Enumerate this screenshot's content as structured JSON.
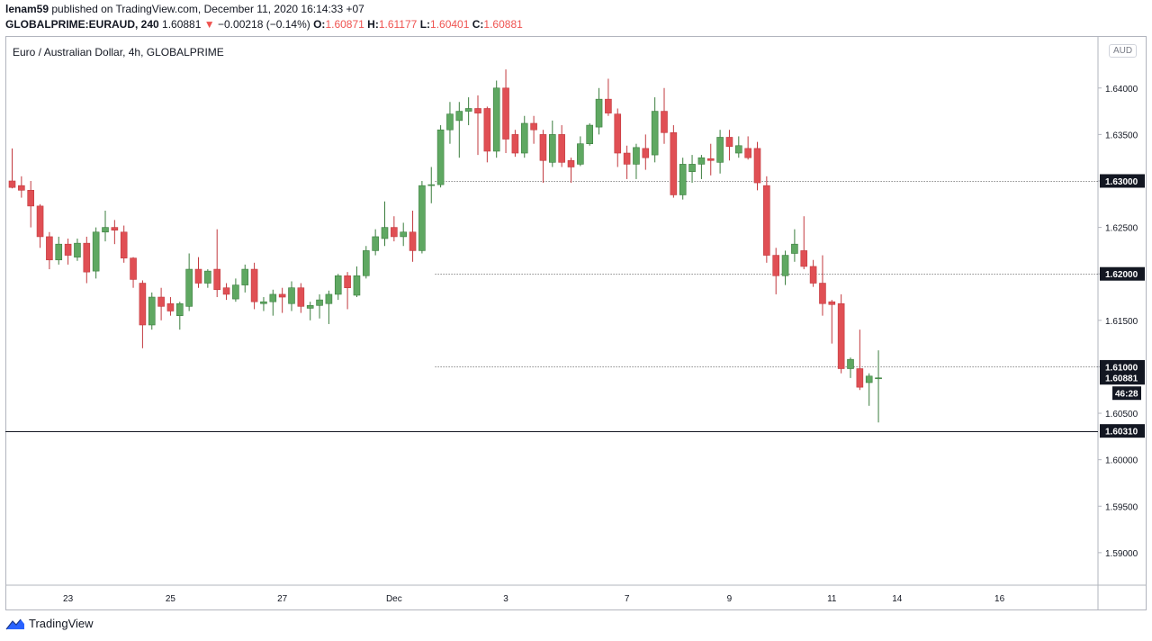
{
  "header": {
    "publisher": "lenam59",
    "published_text": "published on TradingView.com, December 11, 2020 16:14:33 +07",
    "symbol": "GLOBALPRIME:EURAUD, 240",
    "last": "1.60881",
    "change_arrow": "▼",
    "change": "−0.00218 (−0.14%)",
    "o_label": "O:",
    "o": "1.60871",
    "h_label": "H:",
    "h": "1.61177",
    "l_label": "L:",
    "l": "1.60401",
    "c_label": "C:",
    "c": "1.60881"
  },
  "chart_title": "Euro / Australian Dollar, 4h, GLOBALPRIME",
  "currency_badge": "AUD",
  "footer": {
    "brand": "TradingView"
  },
  "colors": {
    "up": "#5fa862",
    "down": "#e04f54",
    "wick_up": "#3a7d3d",
    "wick_down": "#c2393e",
    "grid_dotted": "#555555",
    "label_bg": "#131722"
  },
  "chart_data": {
    "type": "candlestick",
    "title": "Euro / Australian Dollar, 4h, GLOBALPRIME",
    "y_range": [
      1.5865,
      1.6455
    ],
    "y_ticks": [
      "1.59000",
      "1.59500",
      "1.60000",
      "1.60500",
      "1.61000",
      "1.61500",
      "1.62000",
      "1.62500",
      "1.63000",
      "1.63500",
      "1.64000"
    ],
    "x_ticks": [
      {
        "label": "23",
        "index": 6
      },
      {
        "label": "25",
        "index": 17
      },
      {
        "label": "27",
        "index": 29
      },
      {
        "label": "Dec",
        "index": 41
      },
      {
        "label": "3",
        "index": 53
      },
      {
        "label": "7",
        "index": 66
      },
      {
        "label": "9",
        "index": 77
      },
      {
        "label": "11",
        "index": 88
      },
      {
        "label": "14",
        "index": 95
      },
      {
        "label": "16",
        "index": 106
      }
    ],
    "horizontal_levels": [
      {
        "value": 1.63,
        "label": "1.63000",
        "style": "dotted",
        "from_index": 46
      },
      {
        "value": 1.62,
        "label": "1.62000",
        "style": "dotted",
        "from_index": 46
      },
      {
        "value": 1.61,
        "label": "1.61000",
        "style": "dotted",
        "from_index": 46
      },
      {
        "value": 1.6031,
        "label": "1.60310",
        "style": "solid",
        "from_index": 0
      }
    ],
    "current_price": {
      "value": 1.60881,
      "label": "1.60881",
      "countdown": "46:28"
    },
    "candles": [
      {
        "o": 1.63,
        "h": 1.6335,
        "l": 1.6292,
        "c": 1.6293
      },
      {
        "o": 1.6295,
        "h": 1.6305,
        "l": 1.6282,
        "c": 1.629
      },
      {
        "o": 1.629,
        "h": 1.63,
        "l": 1.625,
        "c": 1.6273
      },
      {
        "o": 1.6273,
        "h": 1.6275,
        "l": 1.6228,
        "c": 1.624
      },
      {
        "o": 1.624,
        "h": 1.6245,
        "l": 1.6205,
        "c": 1.6215
      },
      {
        "o": 1.6215,
        "h": 1.624,
        "l": 1.621,
        "c": 1.6232
      },
      {
        "o": 1.6232,
        "h": 1.6238,
        "l": 1.621,
        "c": 1.622
      },
      {
        "o": 1.6218,
        "h": 1.6238,
        "l": 1.6214,
        "c": 1.6233
      },
      {
        "o": 1.6233,
        "h": 1.624,
        "l": 1.619,
        "c": 1.6202
      },
      {
        "o": 1.6203,
        "h": 1.625,
        "l": 1.6195,
        "c": 1.6245
      },
      {
        "o": 1.6245,
        "h": 1.6268,
        "l": 1.6235,
        "c": 1.625
      },
      {
        "o": 1.625,
        "h": 1.6258,
        "l": 1.6232,
        "c": 1.6247
      },
      {
        "o": 1.6245,
        "h": 1.6252,
        "l": 1.6212,
        "c": 1.6217
      },
      {
        "o": 1.6217,
        "h": 1.6218,
        "l": 1.6185,
        "c": 1.6194
      },
      {
        "o": 1.619,
        "h": 1.6193,
        "l": 1.612,
        "c": 1.6145
      },
      {
        "o": 1.6145,
        "h": 1.618,
        "l": 1.614,
        "c": 1.6175
      },
      {
        "o": 1.6175,
        "h": 1.6185,
        "l": 1.615,
        "c": 1.6165
      },
      {
        "o": 1.6168,
        "h": 1.6175,
        "l": 1.6155,
        "c": 1.616
      },
      {
        "o": 1.6155,
        "h": 1.617,
        "l": 1.614,
        "c": 1.6168
      },
      {
        "o": 1.6165,
        "h": 1.6222,
        "l": 1.616,
        "c": 1.6205
      },
      {
        "o": 1.6205,
        "h": 1.6218,
        "l": 1.6185,
        "c": 1.619
      },
      {
        "o": 1.619,
        "h": 1.6205,
        "l": 1.6185,
        "c": 1.6203
      },
      {
        "o": 1.6205,
        "h": 1.6248,
        "l": 1.6175,
        "c": 1.6183
      },
      {
        "o": 1.6185,
        "h": 1.619,
        "l": 1.6172,
        "c": 1.6178
      },
      {
        "o": 1.6173,
        "h": 1.6195,
        "l": 1.617,
        "c": 1.6188
      },
      {
        "o": 1.6188,
        "h": 1.621,
        "l": 1.618,
        "c": 1.6205
      },
      {
        "o": 1.6205,
        "h": 1.6212,
        "l": 1.6162,
        "c": 1.617
      },
      {
        "o": 1.6168,
        "h": 1.6175,
        "l": 1.616,
        "c": 1.617
      },
      {
        "o": 1.617,
        "h": 1.6183,
        "l": 1.6155,
        "c": 1.6178
      },
      {
        "o": 1.6178,
        "h": 1.6185,
        "l": 1.6158,
        "c": 1.6175
      },
      {
        "o": 1.6168,
        "h": 1.6192,
        "l": 1.616,
        "c": 1.6185
      },
      {
        "o": 1.6185,
        "h": 1.619,
        "l": 1.6158,
        "c": 1.6165
      },
      {
        "o": 1.6163,
        "h": 1.617,
        "l": 1.615,
        "c": 1.6166
      },
      {
        "o": 1.6166,
        "h": 1.6178,
        "l": 1.6152,
        "c": 1.6172
      },
      {
        "o": 1.6168,
        "h": 1.6182,
        "l": 1.6146,
        "c": 1.6178
      },
      {
        "o": 1.6178,
        "h": 1.62,
        "l": 1.6172,
        "c": 1.6198
      },
      {
        "o": 1.6198,
        "h": 1.6202,
        "l": 1.6162,
        "c": 1.6185
      },
      {
        "o": 1.6177,
        "h": 1.6208,
        "l": 1.6175,
        "c": 1.6198
      },
      {
        "o": 1.6198,
        "h": 1.623,
        "l": 1.6195,
        "c": 1.6225
      },
      {
        "o": 1.6225,
        "h": 1.6248,
        "l": 1.622,
        "c": 1.624
      },
      {
        "o": 1.6238,
        "h": 1.6278,
        "l": 1.623,
        "c": 1.625
      },
      {
        "o": 1.625,
        "h": 1.6262,
        "l": 1.6235,
        "c": 1.624
      },
      {
        "o": 1.624,
        "h": 1.6255,
        "l": 1.623,
        "c": 1.6245
      },
      {
        "o": 1.6245,
        "h": 1.6268,
        "l": 1.6213,
        "c": 1.6225
      },
      {
        "o": 1.6225,
        "h": 1.63,
        "l": 1.6222,
        "c": 1.6295
      },
      {
        "o": 1.6295,
        "h": 1.6315,
        "l": 1.6276,
        "c": 1.6296
      },
      {
        "o": 1.6296,
        "h": 1.636,
        "l": 1.6293,
        "c": 1.6355
      },
      {
        "o": 1.6355,
        "h": 1.6385,
        "l": 1.634,
        "c": 1.6372
      },
      {
        "o": 1.6365,
        "h": 1.6385,
        "l": 1.6325,
        "c": 1.6375
      },
      {
        "o": 1.6375,
        "h": 1.639,
        "l": 1.636,
        "c": 1.6378
      },
      {
        "o": 1.6378,
        "h": 1.6392,
        "l": 1.6328,
        "c": 1.6373
      },
      {
        "o": 1.6378,
        "h": 1.638,
        "l": 1.632,
        "c": 1.6332
      },
      {
        "o": 1.6332,
        "h": 1.6408,
        "l": 1.6325,
        "c": 1.64
      },
      {
        "o": 1.64,
        "h": 1.642,
        "l": 1.633,
        "c": 1.6345
      },
      {
        "o": 1.635,
        "h": 1.6355,
        "l": 1.6326,
        "c": 1.633
      },
      {
        "o": 1.633,
        "h": 1.637,
        "l": 1.6325,
        "c": 1.6362
      },
      {
        "o": 1.6362,
        "h": 1.637,
        "l": 1.634,
        "c": 1.6355
      },
      {
        "o": 1.635,
        "h": 1.6355,
        "l": 1.6298,
        "c": 1.6322
      },
      {
        "o": 1.632,
        "h": 1.6365,
        "l": 1.6315,
        "c": 1.635
      },
      {
        "o": 1.635,
        "h": 1.636,
        "l": 1.6315,
        "c": 1.632
      },
      {
        "o": 1.6322,
        "h": 1.6325,
        "l": 1.6298,
        "c": 1.6315
      },
      {
        "o": 1.6318,
        "h": 1.6348,
        "l": 1.6316,
        "c": 1.634
      },
      {
        "o": 1.634,
        "h": 1.6362,
        "l": 1.6338,
        "c": 1.636
      },
      {
        "o": 1.6358,
        "h": 1.64,
        "l": 1.635,
        "c": 1.6388
      },
      {
        "o": 1.6388,
        "h": 1.641,
        "l": 1.637,
        "c": 1.6373
      },
      {
        "o": 1.6372,
        "h": 1.6378,
        "l": 1.6315,
        "c": 1.633
      },
      {
        "o": 1.633,
        "h": 1.6338,
        "l": 1.6302,
        "c": 1.6318
      },
      {
        "o": 1.6318,
        "h": 1.634,
        "l": 1.6302,
        "c": 1.6336
      },
      {
        "o": 1.6335,
        "h": 1.635,
        "l": 1.6312,
        "c": 1.6325
      },
      {
        "o": 1.6328,
        "h": 1.639,
        "l": 1.632,
        "c": 1.6375
      },
      {
        "o": 1.6375,
        "h": 1.64,
        "l": 1.634,
        "c": 1.6352
      },
      {
        "o": 1.6352,
        "h": 1.636,
        "l": 1.6282,
        "c": 1.6285
      },
      {
        "o": 1.6285,
        "h": 1.6325,
        "l": 1.628,
        "c": 1.6318
      },
      {
        "o": 1.631,
        "h": 1.6328,
        "l": 1.6298,
        "c": 1.6318
      },
      {
        "o": 1.6318,
        "h": 1.6328,
        "l": 1.6302,
        "c": 1.6325
      },
      {
        "o": 1.6324,
        "h": 1.634,
        "l": 1.6306,
        "c": 1.6322
      },
      {
        "o": 1.632,
        "h": 1.6355,
        "l": 1.6308,
        "c": 1.6347
      },
      {
        "o": 1.6347,
        "h": 1.6355,
        "l": 1.6322,
        "c": 1.6337
      },
      {
        "o": 1.633,
        "h": 1.6348,
        "l": 1.6325,
        "c": 1.6338
      },
      {
        "o": 1.6335,
        "h": 1.6348,
        "l": 1.6323,
        "c": 1.6325
      },
      {
        "o": 1.6335,
        "h": 1.6342,
        "l": 1.629,
        "c": 1.6298
      },
      {
        "o": 1.6295,
        "h": 1.6305,
        "l": 1.6212,
        "c": 1.622
      },
      {
        "o": 1.622,
        "h": 1.6228,
        "l": 1.6178,
        "c": 1.6198
      },
      {
        "o": 1.6198,
        "h": 1.6225,
        "l": 1.6188,
        "c": 1.622
      },
      {
        "o": 1.6222,
        "h": 1.6248,
        "l": 1.6213,
        "c": 1.6232
      },
      {
        "o": 1.6225,
        "h": 1.6262,
        "l": 1.6205,
        "c": 1.6208
      },
      {
        "o": 1.6208,
        "h": 1.6215,
        "l": 1.6186,
        "c": 1.619
      },
      {
        "o": 1.619,
        "h": 1.622,
        "l": 1.6155,
        "c": 1.6168
      },
      {
        "o": 1.617,
        "h": 1.6172,
        "l": 1.6125,
        "c": 1.6167
      },
      {
        "o": 1.6168,
        "h": 1.6178,
        "l": 1.6093,
        "c": 1.6098
      },
      {
        "o": 1.6098,
        "h": 1.611,
        "l": 1.6088,
        "c": 1.6108
      },
      {
        "o": 1.6098,
        "h": 1.614,
        "l": 1.6075,
        "c": 1.6078
      },
      {
        "o": 1.6083,
        "h": 1.6093,
        "l": 1.6058,
        "c": 1.609
      },
      {
        "o": 1.60871,
        "h": 1.61177,
        "l": 1.60401,
        "c": 1.60881
      }
    ]
  }
}
